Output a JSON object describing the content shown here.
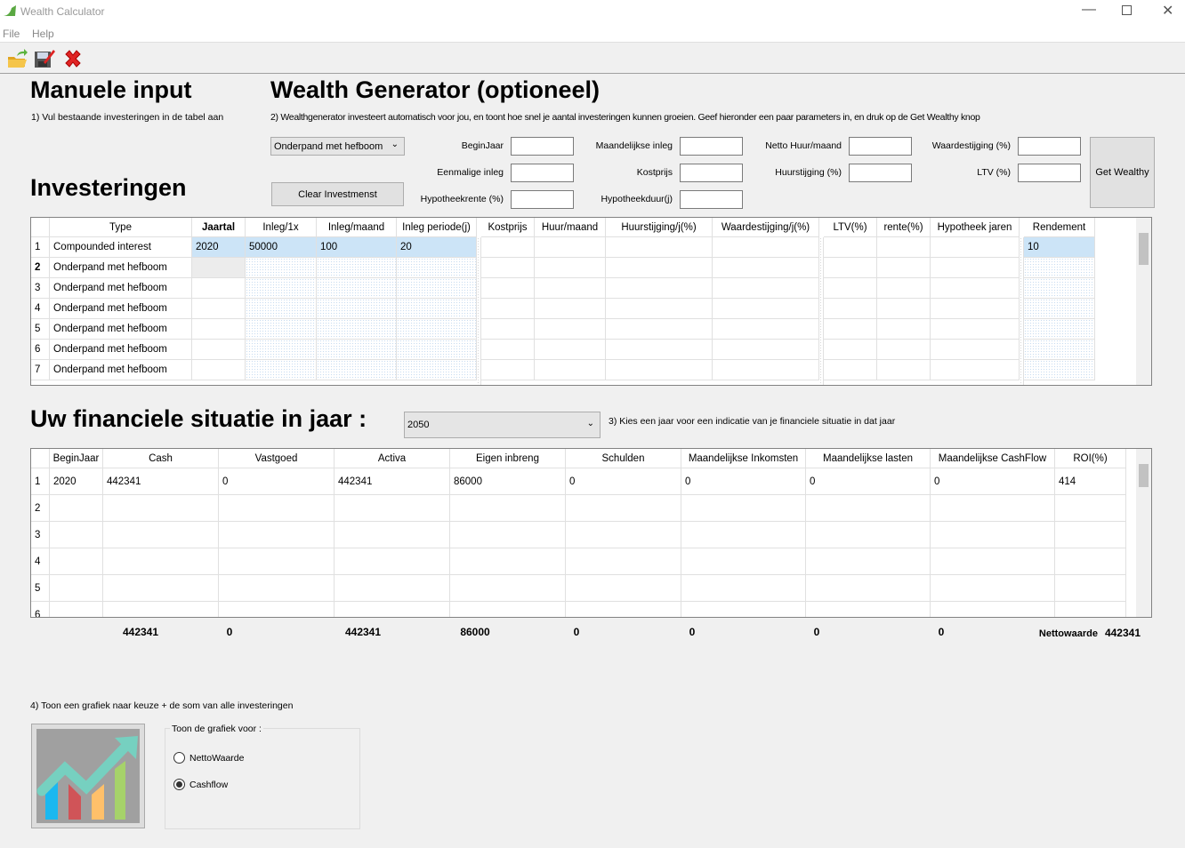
{
  "window": {
    "title": "Wealth Calculator",
    "menu": [
      "File",
      "Help"
    ],
    "toolbar": [
      "open-folder-icon",
      "save-icon",
      "close-red-x-icon"
    ]
  },
  "manual": {
    "title": "Manuele input",
    "hint": "1) Vul bestaande investeringen in de tabel aan",
    "section": "Investeringen"
  },
  "generator": {
    "title": "Wealth Generator (optioneel)",
    "hint": "2) Wealthgenerator investeert automatisch voor jou, en toont hoe snel je aantal investeringen kunnen groeien.  Geef hieronder een paar parameters in, en druk op de Get Wealthy knop",
    "type_select": "Onderpand met hefboom",
    "clear_button": "Clear Investmenst",
    "get_button": "Get Wealthy",
    "fields": {
      "beginjaar": "BeginJaar",
      "maand_inleg": "Maandelijkse inleg",
      "netto_huur": "Netto Huur/maand",
      "waardestijging": "Waardestijging (%)",
      "eenmalig": "Eenmalige inleg",
      "kostprijs": "Kostprijs",
      "huurstijging": "Huurstijging (%)",
      "ltv": "LTV (%)",
      "hypotheekrente": "Hypotheekrente (%)",
      "hypotheekduur": "Hypotheekduur(j)"
    }
  },
  "investments": {
    "columns": [
      "Type",
      "Jaartal",
      "Inleg/1x",
      "Inleg/maand",
      "Inleg periode(j)",
      "Kostprijs",
      "Huur/maand",
      "Huurstijging/j(%)",
      "Waardestijging/j(%)",
      "LTV(%)",
      "rente(%)",
      "Hypotheek jaren",
      "Rendement"
    ],
    "rows": [
      {
        "n": "1",
        "type": "Compounded interest",
        "jaartal": "2020",
        "inleg1x": "50000",
        "inlegmaand": "100",
        "periode": "20",
        "rendement": "10"
      },
      {
        "n": "2",
        "type": "Onderpand met hefboom"
      },
      {
        "n": "3",
        "type": "Onderpand met hefboom"
      },
      {
        "n": "4",
        "type": "Onderpand met hefboom"
      },
      {
        "n": "5",
        "type": "Onderpand met hefboom"
      },
      {
        "n": "6",
        "type": "Onderpand met hefboom"
      },
      {
        "n": "7",
        "type": "Onderpand met hefboom"
      }
    ]
  },
  "situation": {
    "title": "Uw financiele situatie in jaar :",
    "year": "2050",
    "hint": "3) Kies een jaar voor een indicatie van je financiele situatie in dat jaar",
    "columns": [
      "BeginJaar",
      "Cash",
      "Vastgoed",
      "Activa",
      "Eigen inbreng",
      "Schulden",
      "Maandelijkse Inkomsten",
      "Maandelijkse lasten",
      "Maandelijkse CashFlow",
      "ROI(%)"
    ],
    "rows": [
      [
        "1",
        "2020",
        "442341",
        "0",
        "442341",
        "86000",
        "0",
        "0",
        "0",
        "0",
        "414"
      ],
      [
        "2"
      ],
      [
        "3"
      ],
      [
        "4"
      ],
      [
        "5"
      ],
      [
        "6"
      ]
    ],
    "totals": [
      "442341",
      "0",
      "442341",
      "86000",
      "0",
      "0",
      "0",
      "0"
    ],
    "net_label": "Nettowaarde",
    "net_value": "442341"
  },
  "chart": {
    "hint": "4) Toon een grafiek naar keuze + de som van alle investeringen",
    "group": "Toon de grafiek voor :",
    "options": [
      "NettoWaarde",
      "Cashflow"
    ],
    "selected": "Cashflow"
  }
}
